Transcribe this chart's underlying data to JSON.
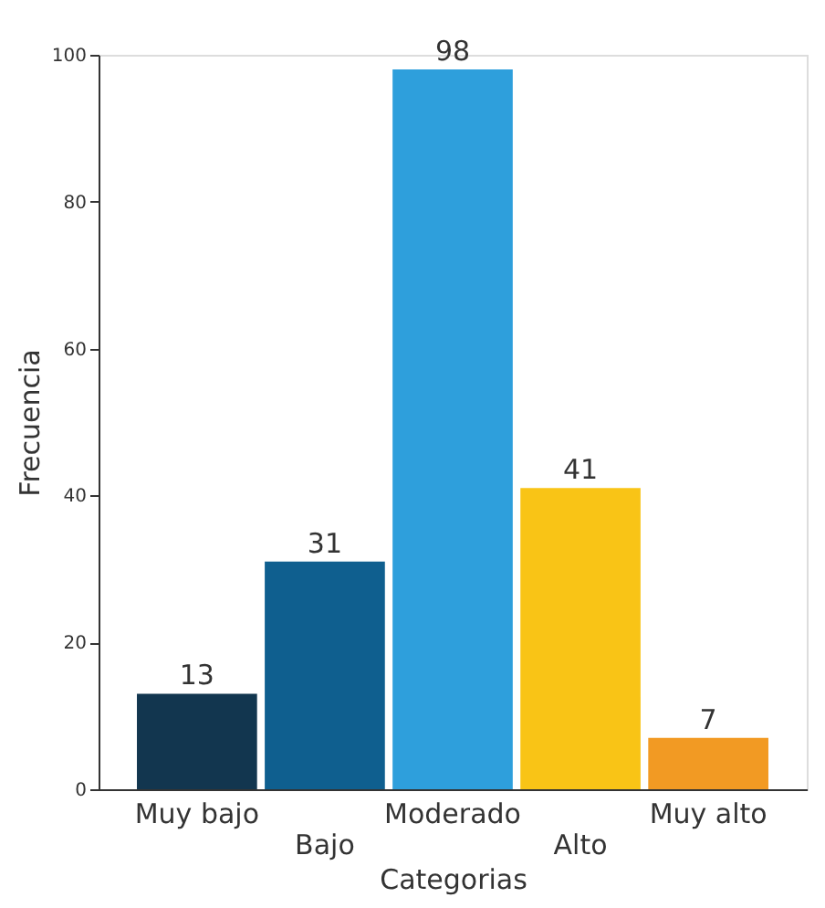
{
  "chart_data": {
    "type": "bar",
    "xlabel": "Categorias",
    "ylabel": "Frecuencia",
    "categories": [
      "Muy bajo",
      "Bajo",
      "Moderado",
      "Alto",
      "Muy alto"
    ],
    "values": [
      13,
      31,
      98,
      41,
      7
    ],
    "colors": [
      "#12364f",
      "#0f5f8f",
      "#2e9fdc",
      "#f9c416",
      "#f29a23"
    ],
    "ylim": [
      0,
      100
    ],
    "yticks": [
      0,
      20,
      40,
      60,
      80,
      100
    ],
    "grid": false,
    "data_labels": true
  }
}
